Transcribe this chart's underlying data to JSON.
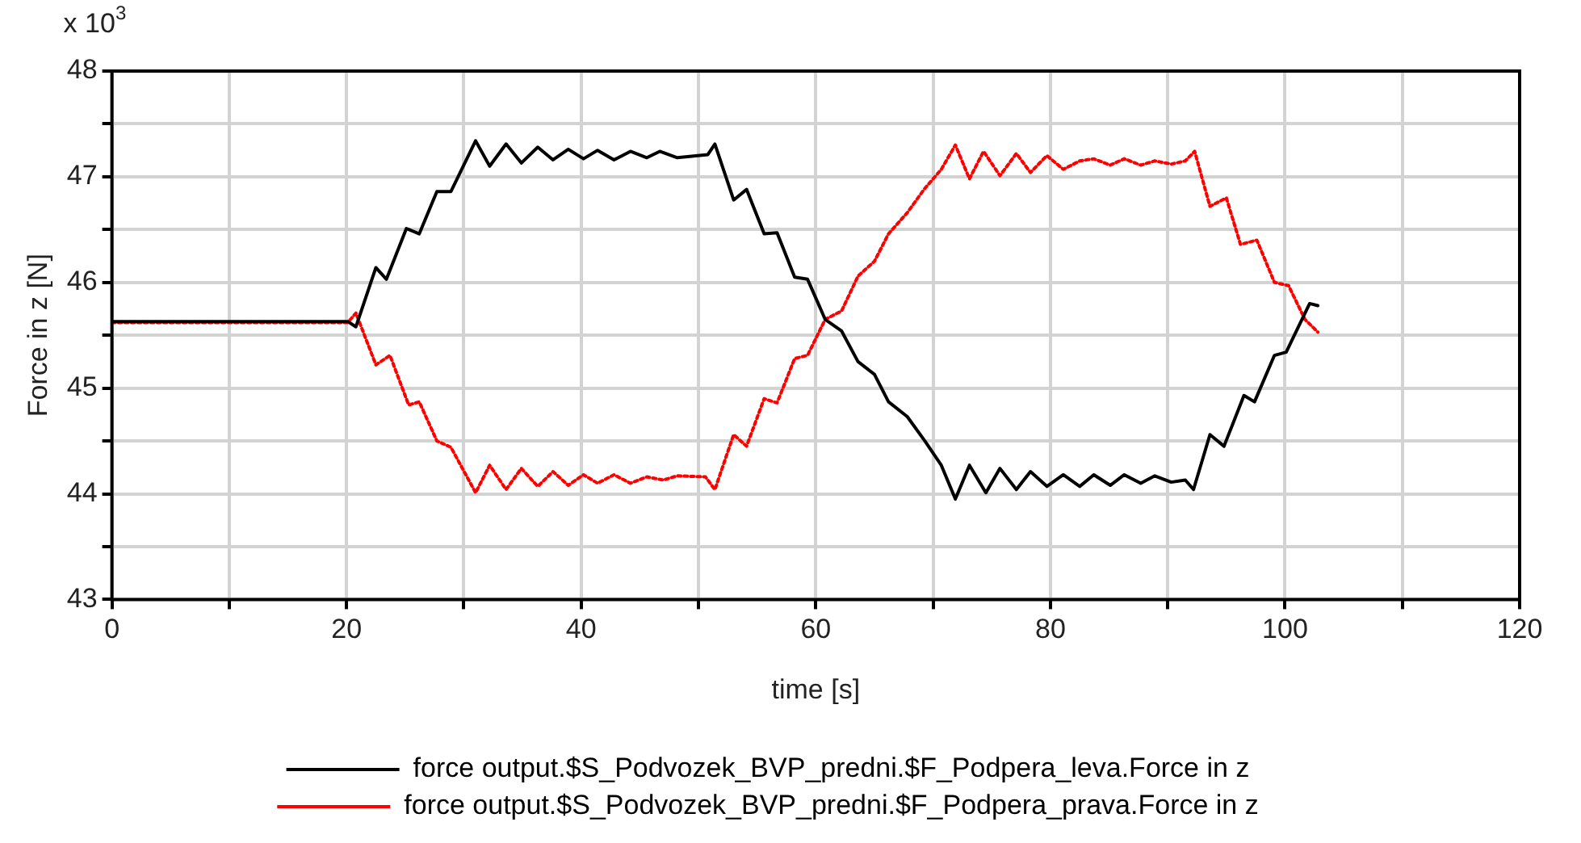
{
  "chart_data": {
    "type": "line",
    "xlabel": "time [s]",
    "ylabel": "Force in z [N]",
    "annotations": [
      "x 10$^{3}$"
    ],
    "xlim": [
      0,
      120
    ],
    "xticks": [
      0,
      {
        "value": 10,
        "label": null
      },
      20,
      {
        "value": 30,
        "label": null
      },
      40,
      {
        "value": 50,
        "label": null
      },
      60,
      {
        "value": 70,
        "label": null
      },
      80,
      {
        "value": 90,
        "label": null
      },
      100,
      {
        "value": 110,
        "label": null
      },
      120
    ],
    "ylim": [
      43,
      48
    ],
    "yticks": [
      43,
      {
        "value": 43.5,
        "label": null
      },
      44,
      {
        "value": 44.5,
        "label": null
      },
      45,
      {
        "value": 45.5,
        "label": null
      },
      46,
      {
        "value": 46.5,
        "label": null
      },
      47,
      {
        "value": 47.5,
        "label": null
      },
      48
    ],
    "grid": true,
    "legend": "bottom",
    "marker": "none",
    "series": [
      {
        "name": "force output.$S_Podvozek_BVP_predni.$F_Podpera_leva.Force in z",
        "color": "#000000",
        "line_style": "solid",
        "x": [
          0,
          10,
          20.1,
          20.8,
          22.5,
          23.4,
          25.1,
          26.2,
          27.7,
          28.9,
          31.0,
          32.2,
          33.6,
          34.9,
          36.3,
          37.6,
          38.9,
          40.2,
          41.4,
          42.8,
          44.2,
          45.6,
          46.7,
          48.2,
          50.8,
          51.4,
          53.0,
          54.1,
          55.6,
          56.7,
          58.2,
          59.3,
          60.8,
          62.2,
          63.6,
          65.0,
          66.2,
          67.8,
          69.3,
          70.7,
          71.9,
          73.1,
          74.5,
          75.7,
          77.1,
          78.3,
          79.7,
          81.1,
          82.5,
          83.7,
          85.1,
          86.3,
          87.7,
          88.9,
          90.3,
          91.5,
          92.2,
          93.6,
          94.8,
          96.5,
          97.4,
          99.1,
          100.1,
          102.1,
          102.8
        ],
        "values": [
          45.63,
          45.63,
          45.63,
          45.58,
          46.14,
          46.03,
          46.51,
          46.46,
          46.86,
          46.86,
          47.34,
          47.1,
          47.31,
          47.13,
          47.28,
          47.16,
          47.26,
          47.17,
          47.25,
          47.16,
          47.24,
          47.18,
          47.24,
          47.18,
          47.21,
          47.31,
          46.78,
          46.88,
          46.46,
          46.47,
          46.05,
          46.03,
          45.65,
          45.54,
          45.25,
          45.13,
          44.87,
          44.73,
          44.5,
          44.27,
          43.95,
          44.27,
          44.01,
          44.24,
          44.04,
          44.21,
          44.07,
          44.18,
          44.07,
          44.18,
          44.08,
          44.18,
          44.1,
          44.17,
          44.11,
          44.13,
          44.04,
          44.56,
          44.45,
          44.93,
          44.87,
          45.31,
          45.34,
          45.8,
          45.78
        ]
      },
      {
        "name": "force output.$S_Podvozek_BVP_predni.$F_Podpera_prava.Force in z",
        "color": "#ff0000",
        "line_style": "dotted",
        "x": [
          0,
          10,
          20.1,
          20.8,
          22.5,
          23.7,
          25.3,
          26.2,
          27.7,
          28.9,
          31.0,
          32.2,
          33.6,
          34.9,
          36.3,
          37.6,
          38.9,
          40.2,
          41.4,
          42.8,
          44.2,
          45.6,
          47.0,
          48.2,
          50.6,
          51.4,
          53.0,
          54.1,
          55.6,
          56.7,
          58.2,
          59.3,
          60.8,
          62.2,
          63.6,
          65.0,
          66.2,
          67.8,
          69.3,
          70.7,
          71.9,
          73.1,
          74.3,
          75.7,
          77.1,
          78.3,
          79.7,
          81.1,
          82.5,
          83.7,
          85.1,
          86.3,
          87.7,
          88.9,
          90.3,
          91.5,
          92.3,
          93.6,
          95.0,
          96.2,
          97.6,
          99.1,
          100.3,
          101.7,
          102.8
        ],
        "values": [
          45.62,
          45.62,
          45.62,
          45.71,
          45.22,
          45.31,
          44.84,
          44.87,
          44.5,
          44.44,
          44.01,
          44.27,
          44.04,
          44.24,
          44.07,
          44.21,
          44.08,
          44.18,
          44.1,
          44.18,
          44.1,
          44.16,
          44.13,
          44.17,
          44.16,
          44.04,
          44.56,
          44.45,
          44.9,
          44.86,
          45.28,
          45.31,
          45.65,
          45.73,
          46.06,
          46.2,
          46.46,
          46.66,
          46.89,
          47.07,
          47.3,
          46.98,
          47.24,
          47.01,
          47.22,
          47.04,
          47.2,
          47.07,
          47.15,
          47.17,
          47.11,
          47.17,
          47.11,
          47.15,
          47.12,
          47.15,
          47.24,
          46.72,
          46.8,
          46.36,
          46.4,
          46.0,
          45.97,
          45.65,
          45.53
        ]
      }
    ]
  }
}
